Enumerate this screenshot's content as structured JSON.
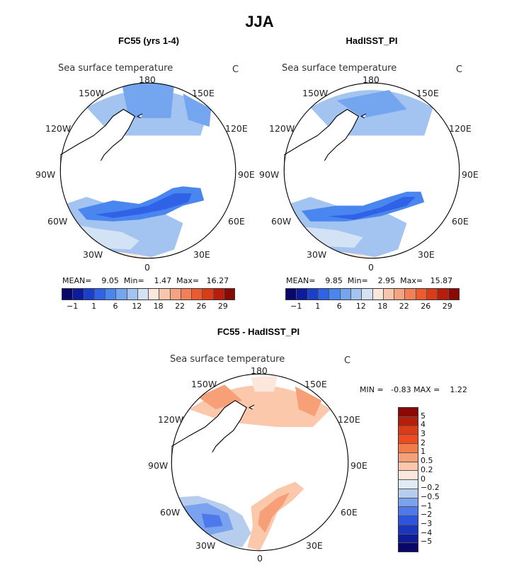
{
  "title": "JJA",
  "panels": [
    {
      "name": "FC55 (yrs 1-4)",
      "variable": "Sea surface temperature",
      "units": "C",
      "stats": {
        "mean_label": "MEAN=",
        "mean": "9.05",
        "min_label": "Min=",
        "min": "1.47",
        "max_label": "Max=",
        "max": "16.27"
      },
      "lon_labels": [
        "180",
        "150E",
        "120E",
        "90E",
        "60E",
        "30E",
        "0",
        "30W",
        "60W",
        "90W",
        "120W",
        "150W"
      ]
    },
    {
      "name": "HadISST_PI",
      "variable": "Sea surface temperature",
      "units": "C",
      "stats": {
        "mean_label": "MEAN=",
        "mean": "9.85",
        "min_label": "Min=",
        "min": "2.95",
        "max_label": "Max=",
        "max": "15.87"
      },
      "lon_labels": [
        "180",
        "150E",
        "120E",
        "90E",
        "60E",
        "30E",
        "0",
        "30W",
        "60W",
        "90W",
        "120W",
        "150W"
      ]
    },
    {
      "name": "FC55 - HadISST_PI",
      "variable": "Sea surface temperature",
      "units": "C",
      "minmax": "MIN =   -0.83 MAX =    1.22",
      "lon_labels": [
        "180",
        "150E",
        "120E",
        "90E",
        "60E",
        "30E",
        "0",
        "30W",
        "60W",
        "90W",
        "120W",
        "150W"
      ]
    }
  ],
  "horizontal_colorbar": {
    "tick_labels": [
      "-1",
      "1",
      "6",
      "12",
      "18",
      "22",
      "26",
      "29"
    ],
    "colors": [
      "#08086b",
      "#0c1c9c",
      "#1a3fcc",
      "#2f62e6",
      "#4a86f0",
      "#74a6f0",
      "#a3c3f0",
      "#d3e3f5",
      "#fbe7dc",
      "#f8c6ad",
      "#f5a380",
      "#f27f55",
      "#ed5a30",
      "#db3b17",
      "#b81d09",
      "#8a0a03"
    ]
  },
  "vertical_colorbar": {
    "tick_labels": [
      "5",
      "4",
      "3",
      "2",
      "1",
      "0.5",
      "0.2",
      "0",
      "-0.2",
      "-0.5",
      "-1",
      "-2",
      "-3",
      "-4",
      "-5"
    ],
    "colors": [
      "#8a0a03",
      "#b81d09",
      "#db3b17",
      "#f04a20",
      "#f37b48",
      "#f7a078",
      "#fbc8ac",
      "#fbe7dc",
      "#e2ebf5",
      "#b7cdee",
      "#7aa2ee",
      "#4d79ea",
      "#2c54de",
      "#1a36bf",
      "#0e1c95",
      "#08086b"
    ]
  },
  "chart_data": {
    "type": "heatmap",
    "title": "JJA",
    "maps": [
      {
        "title": "FC55 (yrs 1-4)",
        "variable": "Sea surface temperature",
        "units": "C",
        "mean": 9.05,
        "min": 1.47,
        "max": 16.27,
        "contour_levels": [
          -1,
          1,
          6,
          12,
          18,
          22,
          26,
          29
        ]
      },
      {
        "title": "HadISST_PI",
        "variable": "Sea surface temperature",
        "units": "C",
        "mean": 9.85,
        "min": 2.95,
        "max": 15.87,
        "contour_levels": [
          -1,
          1,
          6,
          12,
          18,
          22,
          26,
          29
        ]
      },
      {
        "title": "FC55 - HadISST_PI",
        "variable": "Sea surface temperature",
        "units": "C",
        "min": -0.83,
        "max": 1.22,
        "contour_levels": [
          -5,
          -4,
          -3,
          -2,
          -1,
          -0.5,
          -0.2,
          0,
          0.2,
          0.5,
          1,
          2,
          3,
          4,
          5
        ]
      }
    ]
  }
}
